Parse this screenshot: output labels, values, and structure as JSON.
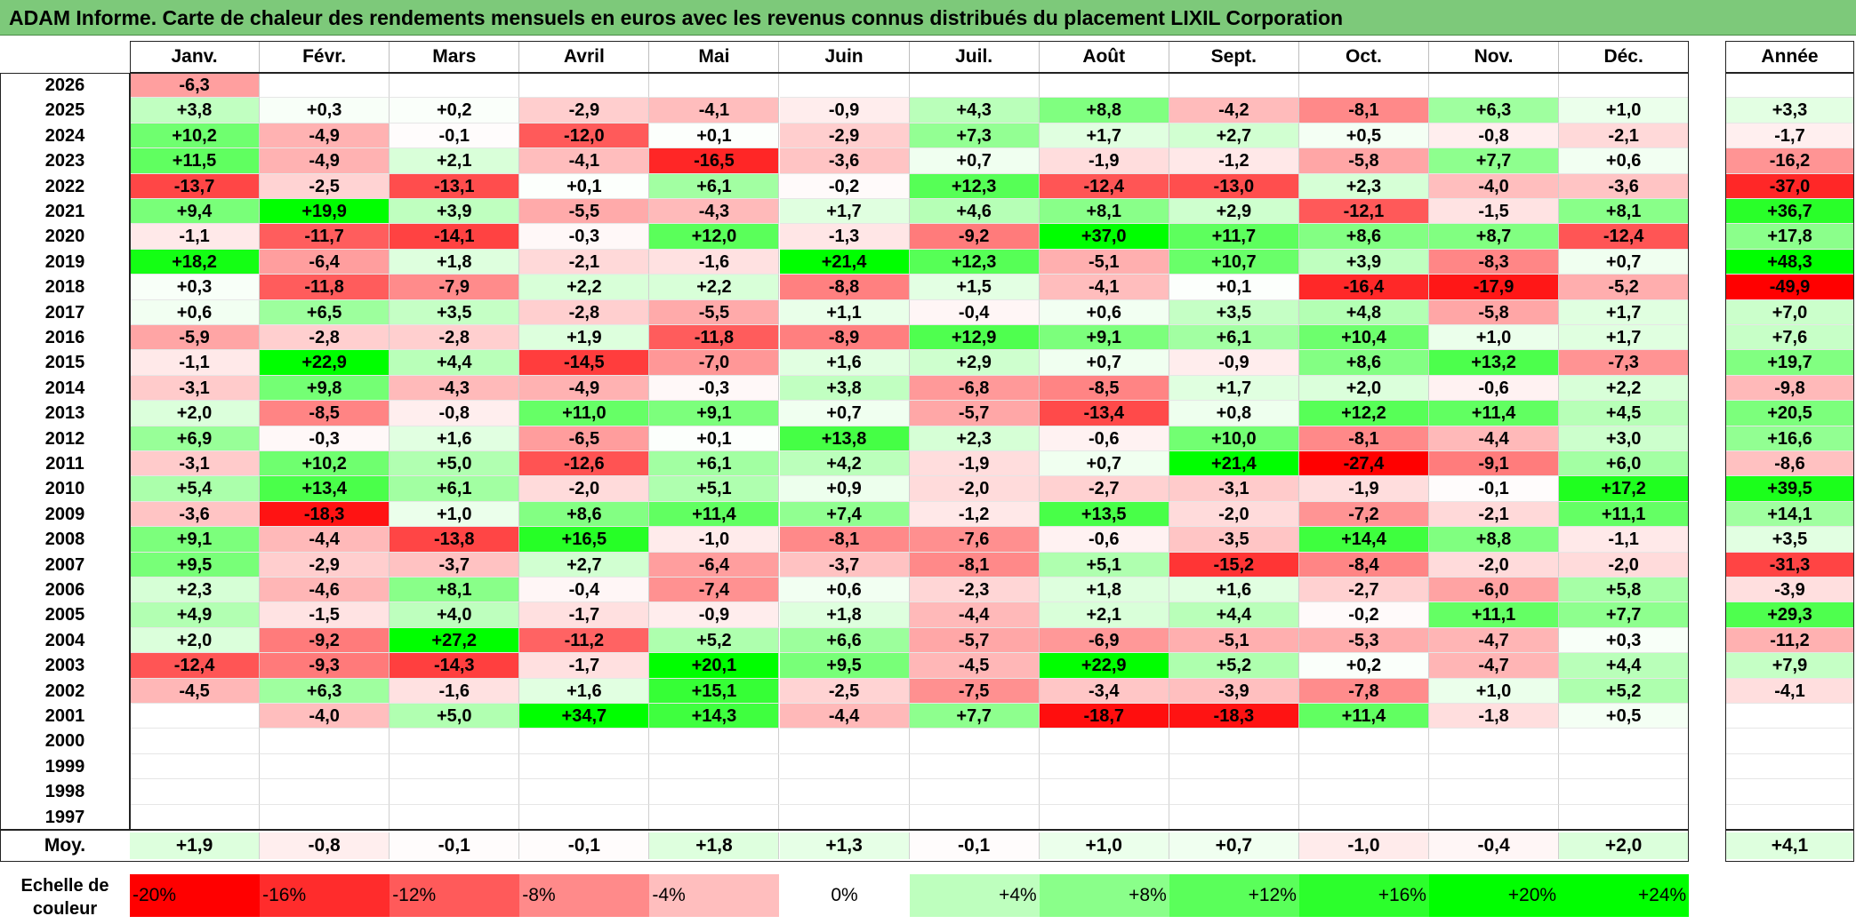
{
  "title": "ADAM Informe. Carte de chaleur des rendements mensuels en euros avec les revenus connus distribués du placement LIXIL Corporation",
  "year_header": "Année",
  "avg_label": "Moy.",
  "scale_label": "Echelle de couleur",
  "chart_data": {
    "type": "heatmap",
    "columns": [
      "Janv.",
      "Févr.",
      "Mars",
      "Avril",
      "Mai",
      "Juin",
      "Juil.",
      "Août",
      "Sept.",
      "Oct.",
      "Nov.",
      "Déc."
    ],
    "rows": [
      {
        "year": "2026",
        "months": [
          "-6,3",
          "",
          "",
          "",
          "",
          "",
          "",
          "",
          "",
          "",
          "",
          ""
        ],
        "annual": ""
      },
      {
        "year": "2025",
        "months": [
          "+3,8",
          "+0,3",
          "+0,2",
          "-2,9",
          "-4,1",
          "-0,9",
          "+4,3",
          "+8,8",
          "-4,2",
          "-8,1",
          "+6,3",
          "+1,0"
        ],
        "annual": "+3,3"
      },
      {
        "year": "2024",
        "months": [
          "+10,2",
          "-4,9",
          "-0,1",
          "-12,0",
          "+0,1",
          "-2,9",
          "+7,3",
          "+1,7",
          "+2,7",
          "+0,5",
          "-0,8",
          "-2,1"
        ],
        "annual": "-1,7"
      },
      {
        "year": "2023",
        "months": [
          "+11,5",
          "-4,9",
          "+2,1",
          "-4,1",
          "-16,5",
          "-3,6",
          "+0,7",
          "-1,9",
          "-1,2",
          "-5,8",
          "+7,7",
          "+0,6"
        ],
        "annual": "-16,2"
      },
      {
        "year": "2022",
        "months": [
          "-13,7",
          "-2,5",
          "-13,1",
          "+0,1",
          "+6,1",
          "-0,2",
          "+12,3",
          "-12,4",
          "-13,0",
          "+2,3",
          "-4,0",
          "-3,6"
        ],
        "annual": "-37,0"
      },
      {
        "year": "2021",
        "months": [
          "+9,4",
          "+19,9",
          "+3,9",
          "-5,5",
          "-4,3",
          "+1,7",
          "+4,6",
          "+8,1",
          "+2,9",
          "-12,1",
          "-1,5",
          "+8,1"
        ],
        "annual": "+36,7"
      },
      {
        "year": "2020",
        "months": [
          "-1,1",
          "-11,7",
          "-14,1",
          "-0,3",
          "+12,0",
          "-1,3",
          "-9,2",
          "+37,0",
          "+11,7",
          "+8,6",
          "+8,7",
          "-12,4"
        ],
        "annual": "+17,8"
      },
      {
        "year": "2019",
        "months": [
          "+18,2",
          "-6,4",
          "+1,8",
          "-2,1",
          "-1,6",
          "+21,4",
          "+12,3",
          "-5,1",
          "+10,7",
          "+3,9",
          "-8,3",
          "+0,7"
        ],
        "annual": "+48,3"
      },
      {
        "year": "2018",
        "months": [
          "+0,3",
          "-11,8",
          "-7,9",
          "+2,2",
          "+2,2",
          "-8,8",
          "+1,5",
          "-4,1",
          "+0,1",
          "-16,4",
          "-17,9",
          "-5,2"
        ],
        "annual": "-49,9"
      },
      {
        "year": "2017",
        "months": [
          "+0,6",
          "+6,5",
          "+3,5",
          "-2,8",
          "-5,5",
          "+1,1",
          "-0,4",
          "+0,6",
          "+3,5",
          "+4,8",
          "-5,8",
          "+1,7"
        ],
        "annual": "+7,0"
      },
      {
        "year": "2016",
        "months": [
          "-5,9",
          "-2,8",
          "-2,8",
          "+1,9",
          "-11,8",
          "-8,9",
          "+12,9",
          "+9,1",
          "+6,1",
          "+10,4",
          "+1,0",
          "+1,7"
        ],
        "annual": "+7,6"
      },
      {
        "year": "2015",
        "months": [
          "-1,1",
          "+22,9",
          "+4,4",
          "-14,5",
          "-7,0",
          "+1,6",
          "+2,9",
          "+0,7",
          "-0,9",
          "+8,6",
          "+13,2",
          "-7,3"
        ],
        "annual": "+19,7"
      },
      {
        "year": "2014",
        "months": [
          "-3,1",
          "+9,8",
          "-4,3",
          "-4,9",
          "-0,3",
          "+3,8",
          "-6,8",
          "-8,5",
          "+1,7",
          "+2,0",
          "-0,6",
          "+2,2"
        ],
        "annual": "-9,8"
      },
      {
        "year": "2013",
        "months": [
          "+2,0",
          "-8,5",
          "-0,8",
          "+11,0",
          "+9,1",
          "+0,7",
          "-5,7",
          "-13,4",
          "+0,8",
          "+12,2",
          "+11,4",
          "+4,5"
        ],
        "annual": "+20,5"
      },
      {
        "year": "2012",
        "months": [
          "+6,9",
          "-0,3",
          "+1,6",
          "-6,5",
          "+0,1",
          "+13,8",
          "+2,3",
          "-0,6",
          "+10,0",
          "-8,1",
          "-4,4",
          "+3,0"
        ],
        "annual": "+16,6"
      },
      {
        "year": "2011",
        "months": [
          "-3,1",
          "+10,2",
          "+5,0",
          "-12,6",
          "+6,1",
          "+4,2",
          "-1,9",
          "+0,7",
          "+21,4",
          "-27,4",
          "-9,1",
          "+6,0"
        ],
        "annual": "-8,6"
      },
      {
        "year": "2010",
        "months": [
          "+5,4",
          "+13,4",
          "+6,1",
          "-2,0",
          "+5,1",
          "+0,9",
          "-2,0",
          "-2,7",
          "-3,1",
          "-1,9",
          "-0,1",
          "+17,2"
        ],
        "annual": "+39,5"
      },
      {
        "year": "2009",
        "months": [
          "-3,6",
          "-18,3",
          "+1,0",
          "+8,6",
          "+11,4",
          "+7,4",
          "-1,2",
          "+13,5",
          "-2,0",
          "-7,2",
          "-2,1",
          "+11,1"
        ],
        "annual": "+14,1"
      },
      {
        "year": "2008",
        "months": [
          "+9,1",
          "-4,4",
          "-13,8",
          "+16,5",
          "-1,0",
          "-8,1",
          "-7,6",
          "-0,6",
          "-3,5",
          "+14,4",
          "+8,8",
          "-1,1"
        ],
        "annual": "+3,5"
      },
      {
        "year": "2007",
        "months": [
          "+9,5",
          "-2,9",
          "-3,7",
          "+2,7",
          "-6,4",
          "-3,7",
          "-8,1",
          "+5,1",
          "-15,2",
          "-8,4",
          "-2,0",
          "-2,0"
        ],
        "annual": "-31,3"
      },
      {
        "year": "2006",
        "months": [
          "+2,3",
          "-4,6",
          "+8,1",
          "-0,4",
          "-7,4",
          "+0,6",
          "-2,3",
          "+1,8",
          "+1,6",
          "-2,7",
          "-6,0",
          "+5,8"
        ],
        "annual": "-3,9"
      },
      {
        "year": "2005",
        "months": [
          "+4,9",
          "-1,5",
          "+4,0",
          "-1,7",
          "-0,9",
          "+1,8",
          "-4,4",
          "+2,1",
          "+4,4",
          "-0,2",
          "+11,1",
          "+7,7"
        ],
        "annual": "+29,3"
      },
      {
        "year": "2004",
        "months": [
          "+2,0",
          "-9,2",
          "+27,2",
          "-11,2",
          "+5,2",
          "+6,6",
          "-5,7",
          "-6,9",
          "-5,1",
          "-5,3",
          "-4,7",
          "+0,3"
        ],
        "annual": "-11,2"
      },
      {
        "year": "2003",
        "months": [
          "-12,4",
          "-9,3",
          "-14,3",
          "-1,7",
          "+20,1",
          "+9,5",
          "-4,5",
          "+22,9",
          "+5,2",
          "+0,2",
          "-4,7",
          "+4,4"
        ],
        "annual": "+7,9"
      },
      {
        "year": "2002",
        "months": [
          "-4,5",
          "+6,3",
          "-1,6",
          "+1,6",
          "+15,1",
          "-2,5",
          "-7,5",
          "-3,4",
          "-3,9",
          "-7,8",
          "+1,0",
          "+5,2"
        ],
        "annual": "-4,1"
      },
      {
        "year": "2001",
        "months": [
          "",
          "-4,0",
          "+5,0",
          "+34,7",
          "+14,3",
          "-4,4",
          "+7,7",
          "-18,7",
          "-18,3",
          "+11,4",
          "-1,8",
          "+0,5"
        ],
        "annual": ""
      },
      {
        "year": "2000",
        "months": [
          "",
          "",
          "",
          "",
          "",
          "",
          "",
          "",
          "",
          "",
          "",
          ""
        ],
        "annual": ""
      },
      {
        "year": "1999",
        "months": [
          "",
          "",
          "",
          "",
          "",
          "",
          "",
          "",
          "",
          "",
          "",
          ""
        ],
        "annual": ""
      },
      {
        "year": "1998",
        "months": [
          "",
          "",
          "",
          "",
          "",
          "",
          "",
          "",
          "",
          "",
          "",
          ""
        ],
        "annual": ""
      },
      {
        "year": "1997",
        "months": [
          "",
          "",
          "",
          "",
          "",
          "",
          "",
          "",
          "",
          "",
          "",
          ""
        ],
        "annual": ""
      }
    ],
    "averages": [
      "+1,9",
      "-0,8",
      "-0,1",
      "-0,1",
      "+1,8",
      "+1,3",
      "-0,1",
      "+1,0",
      "+0,7",
      "-1,0",
      "-0,4",
      "+2,0"
    ],
    "annual_average": "+4,1",
    "scale": [
      "-20%",
      "-16%",
      "-12%",
      "-8%",
      "-4%",
      "0%",
      "+4%",
      "+8%",
      "+12%",
      "+16%",
      "+20%",
      "+24%"
    ],
    "colors": {
      "negative": "#ff0000",
      "positive": "#00ff00",
      "neutral": "#ffffff"
    }
  }
}
